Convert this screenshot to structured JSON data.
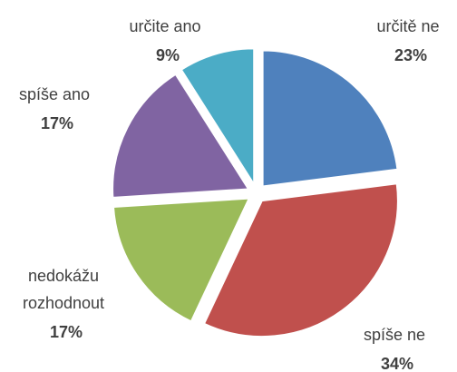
{
  "chart_data": {
    "type": "pie",
    "categories": [
      "určitě ne",
      "spíše ne",
      "nedokážu rozhodnout",
      "spíše ano",
      "určite ano"
    ],
    "values": [
      23,
      34,
      17,
      17,
      9
    ],
    "value_labels": [
      "23%",
      "34%",
      "17%",
      "17%",
      "9%"
    ],
    "colors": [
      "#4f81bd",
      "#c0504d",
      "#9bbb59",
      "#8064a2",
      "#4bacc6"
    ]
  }
}
